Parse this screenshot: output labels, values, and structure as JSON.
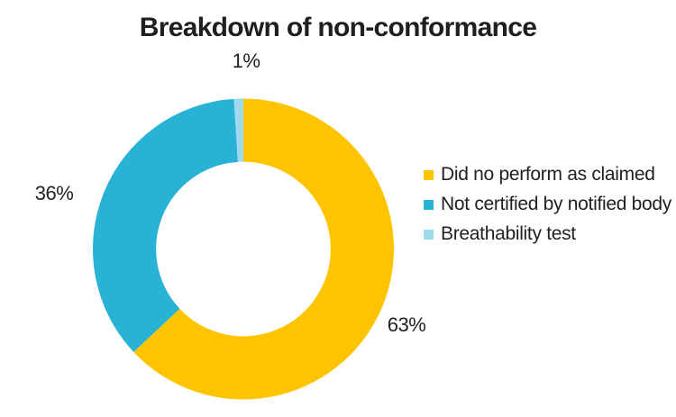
{
  "page": {
    "background": "#FFFFFF",
    "text_color": "#212121"
  },
  "chart_data": {
    "type": "pie",
    "subtype": "donut",
    "title": "Breakdown of non-conformance",
    "categories": [
      "Did no perform as claimed",
      "Not certified by notified body",
      "Breathability test"
    ],
    "values": [
      63,
      36,
      1
    ],
    "unit": "%",
    "labels": [
      "63%",
      "36%",
      "1%"
    ],
    "colors": [
      "#FFC400",
      "#27B2D6",
      "#9DDAEB"
    ],
    "start_angle_deg": 0,
    "direction": "clockwise",
    "donut_hole_ratio": 0.58,
    "legend_position": "right",
    "grid": false
  }
}
